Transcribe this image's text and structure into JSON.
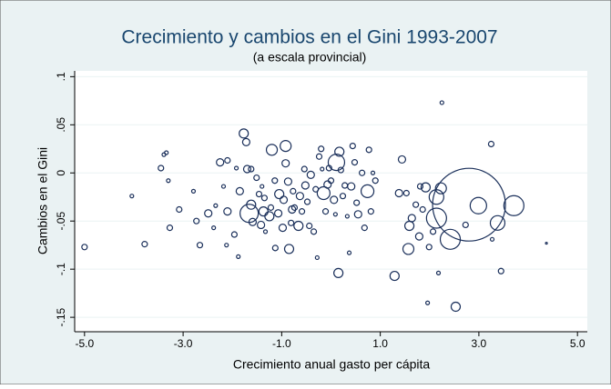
{
  "chart_data": {
    "type": "scatter",
    "title": "Crecimiento y cambios en el Gini 1993-2007",
    "subtitle": "(a escala provincial)",
    "x_label": "Crecimiento anual gasto per cápita",
    "y_label": "Cambios en el Gini",
    "xlim": [
      -5.2,
      5.2
    ],
    "ylim": [
      -0.165,
      0.106
    ],
    "xticks": [
      {
        "value": -5,
        "label": "-5.0"
      },
      {
        "value": -3,
        "label": "-3.0"
      },
      {
        "value": -1,
        "label": "-1.0"
      },
      {
        "value": 1,
        "label": "1.0"
      },
      {
        "value": 3,
        "label": "3.0"
      },
      {
        "value": 5,
        "label": "5.0"
      }
    ],
    "yticks": [
      {
        "value": 0.1,
        "label": ".1"
      },
      {
        "value": 0.05,
        "label": ".05"
      },
      0,
      {
        "value": -0.05,
        "label": "-.05"
      },
      {
        "value": -0.1,
        "label": "-.1"
      },
      {
        "value": -0.15,
        "label": "-.15"
      }
    ],
    "grid": true,
    "series": [
      {
        "color": "#1a2f5a",
        "x": [
          -5.0,
          -4.04,
          -3.78,
          -3.45,
          -3.39,
          -3.34,
          -3.3,
          -3.27,
          -3.08,
          -2.79,
          -2.73,
          -2.66,
          -2.49,
          -2.38,
          -2.34,
          -2.25,
          -2.1,
          -2.1,
          -2.18,
          -2.12,
          -1.96,
          -1.92,
          -1.88,
          -1.85,
          -1.77,
          -1.72,
          -1.7,
          -1.62,
          -1.66,
          -1.62,
          -1.59,
          -1.51,
          -1.46,
          -1.42,
          -1.4,
          -1.37,
          -1.35,
          -1.33,
          -1.25,
          -1.22,
          -1.2,
          -1.14,
          -1.13,
          -1.07,
          -1.05,
          -0.98,
          -0.96,
          -0.92,
          -0.92,
          -0.87,
          -0.85,
          -0.81,
          -0.79,
          -0.77,
          -0.74,
          -0.66,
          -0.63,
          -0.59,
          -0.54,
          -0.52,
          -0.48,
          -0.44,
          -0.41,
          -0.35,
          -0.31,
          -0.28,
          -0.24,
          -0.2,
          -0.18,
          -0.15,
          -0.11,
          -0.07,
          -0.04,
          0.0,
          0.06,
          0.09,
          0.11,
          0.15,
          0.17,
          0.2,
          0.24,
          0.28,
          0.33,
          0.37,
          0.41,
          0.44,
          0.48,
          0.52,
          0.55,
          0.63,
          0.68,
          0.74,
          0.77,
          0.81,
          0.85,
          0.9,
          1.29,
          1.38,
          1.44,
          1.53,
          1.57,
          1.59,
          1.64,
          1.72,
          1.79,
          1.81,
          1.86,
          1.92,
          1.96,
          1.99,
          2.07,
          2.14,
          2.14,
          2.18,
          2.23,
          2.25,
          2.42,
          2.53,
          2.73,
          2.8,
          2.99,
          3.25,
          3.27,
          3.38,
          3.45,
          3.71,
          4.37
        ],
        "values": [
          -0.077,
          -0.024,
          -0.074,
          0.005,
          0.019,
          0.021,
          -0.008,
          -0.057,
          -0.038,
          -0.019,
          -0.05,
          -0.075,
          -0.042,
          -0.057,
          -0.034,
          0.011,
          0.013,
          -0.04,
          -0.014,
          -0.075,
          -0.064,
          0.005,
          -0.087,
          -0.019,
          0.041,
          0.032,
          0.004,
          0.004,
          -0.042,
          -0.033,
          -0.051,
          -0.005,
          -0.022,
          -0.054,
          -0.014,
          -0.04,
          -0.026,
          -0.061,
          -0.045,
          -0.036,
          0.024,
          -0.008,
          -0.078,
          -0.042,
          -0.022,
          -0.057,
          -0.028,
          0.028,
          0.01,
          -0.009,
          -0.079,
          -0.052,
          -0.038,
          -0.019,
          -0.036,
          -0.055,
          -0.024,
          -0.04,
          0.004,
          -0.013,
          -0.03,
          -0.055,
          -0.002,
          -0.061,
          -0.017,
          -0.088,
          0.017,
          0.025,
          0.004,
          -0.021,
          -0.04,
          -0.012,
          0.005,
          -0.008,
          -0.028,
          -0.043,
          0.011,
          -0.104,
          0.022,
          0.003,
          -0.024,
          -0.013,
          -0.045,
          -0.083,
          -0.014,
          0.028,
          0.011,
          -0.031,
          -0.043,
          0.0,
          -0.057,
          -0.019,
          0.024,
          -0.04,
          0.0,
          -0.008,
          -0.107,
          -0.021,
          0.014,
          -0.021,
          -0.079,
          -0.055,
          -0.047,
          -0.033,
          -0.066,
          -0.014,
          -0.038,
          -0.015,
          -0.135,
          -0.077,
          -0.061,
          -0.047,
          -0.025,
          -0.104,
          -0.016,
          0.073,
          -0.069,
          -0.139,
          -0.054,
          -0.033,
          -0.034,
          0.03,
          -0.069,
          -0.052,
          -0.102,
          -0.034,
          -0.073
        ],
        "sizes": [
          3,
          2,
          3,
          3,
          2,
          2,
          2,
          3,
          3,
          2,
          3,
          3,
          4,
          2,
          2,
          4,
          3,
          4,
          2,
          2,
          3,
          2,
          2,
          4,
          5,
          4,
          4,
          3,
          10,
          5,
          4,
          3,
          3,
          4,
          2,
          5,
          3,
          2,
          5,
          3,
          6,
          3,
          3,
          4,
          5,
          4,
          4,
          6,
          4,
          4,
          5,
          3,
          4,
          3,
          3,
          5,
          4,
          3,
          3,
          4,
          3,
          3,
          4,
          3,
          3,
          2,
          3,
          3,
          2,
          7,
          3,
          4,
          3,
          3,
          4,
          2,
          9,
          5,
          5,
          3,
          3,
          3,
          2,
          2,
          4,
          3,
          3,
          3,
          4,
          3,
          3,
          7,
          3,
          3,
          2,
          3,
          5,
          4,
          4,
          3,
          6,
          5,
          4,
          3,
          4,
          3,
          3,
          5,
          2,
          3,
          3,
          11,
          8,
          2,
          6,
          2,
          11,
          5,
          3,
          40,
          9,
          3,
          2,
          8,
          3,
          11,
          1
        ]
      }
    ]
  }
}
